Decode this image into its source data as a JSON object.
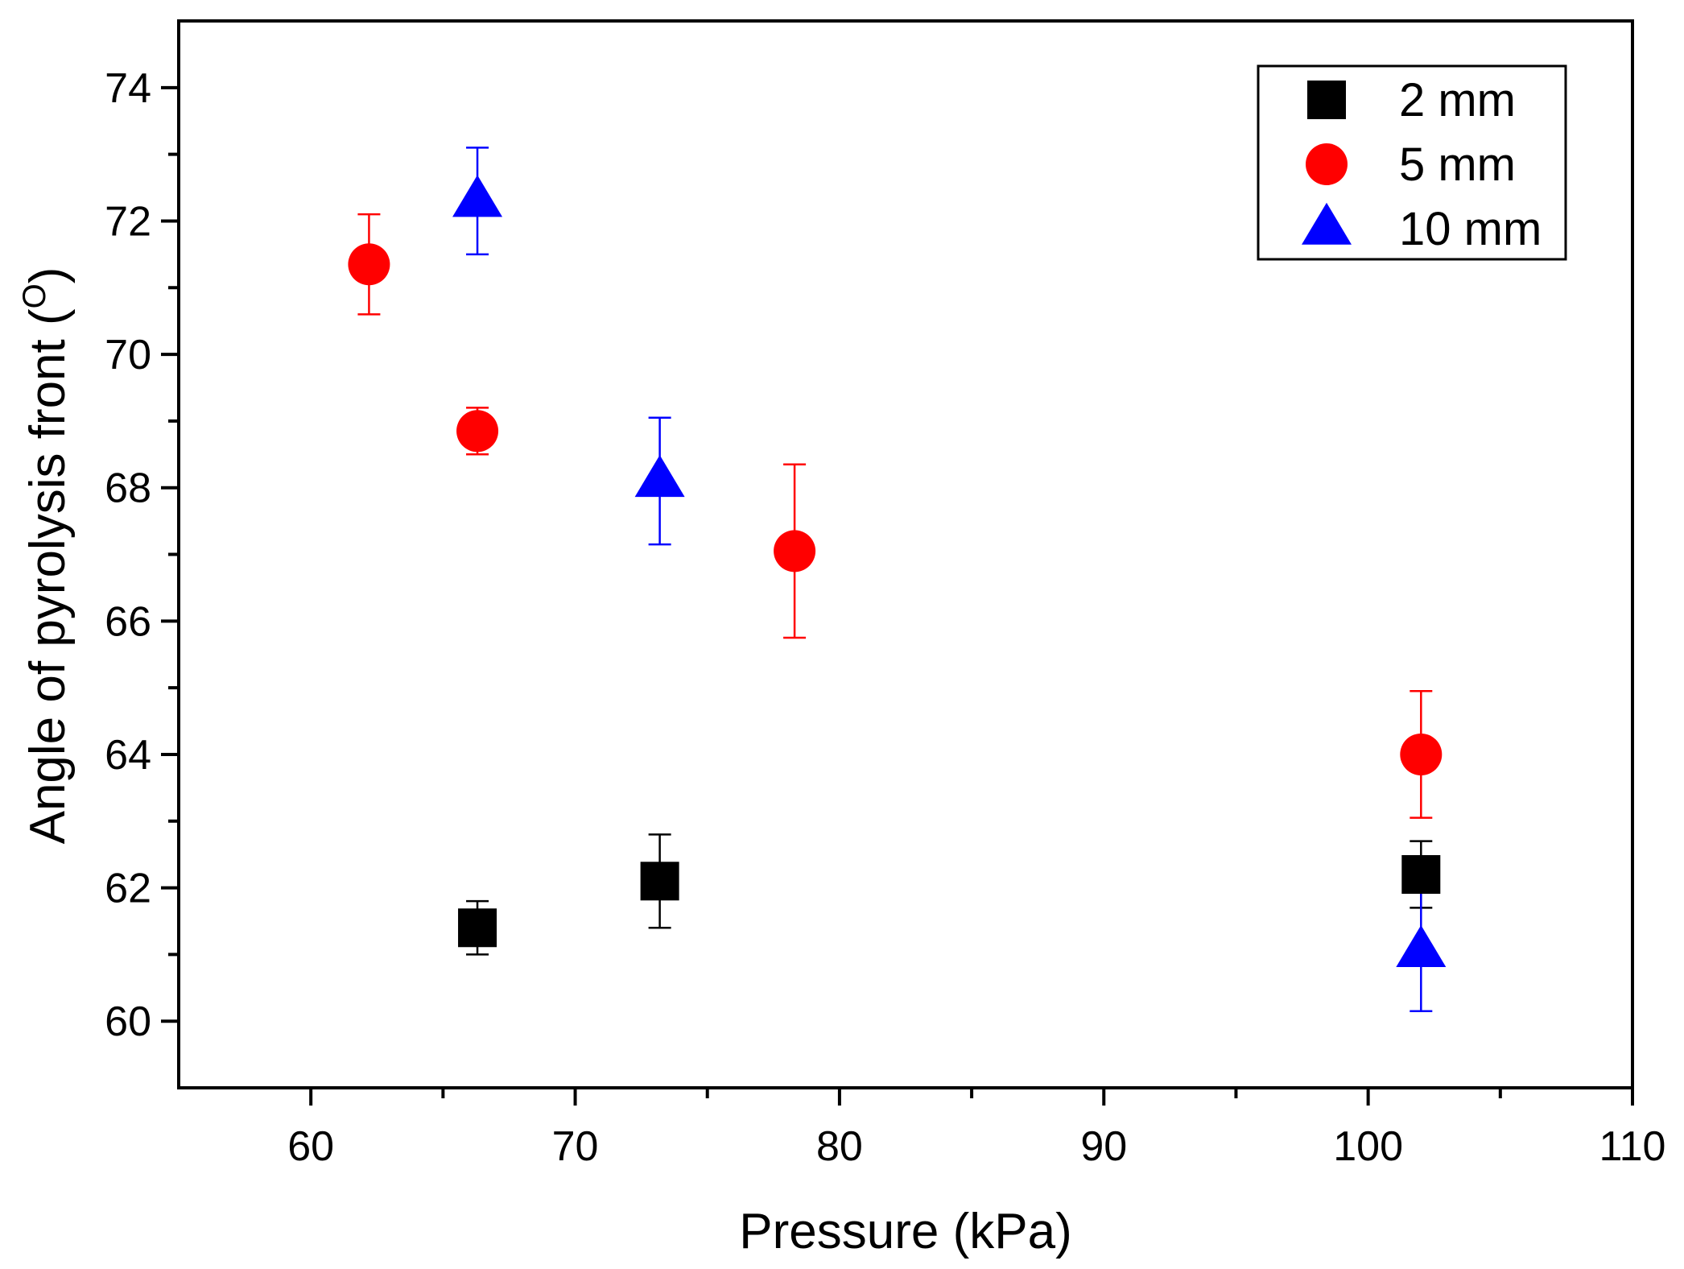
{
  "chart_data": {
    "type": "scatter",
    "title": "",
    "xlabel": "Pressure (kPa)",
    "ylabel": "Angle of pyrolysis front (",
    "ylabel_superscript": "O",
    "ylabel_suffix": ")",
    "xlim": [
      55,
      110
    ],
    "ylim": [
      59,
      75
    ],
    "x_ticks": [
      60,
      70,
      80,
      90,
      100,
      110
    ],
    "x_tick_labels": [
      "60",
      "70",
      "80",
      "90",
      "100",
      "110"
    ],
    "x_minor_ticks": [
      65,
      75,
      85,
      95,
      105
    ],
    "y_ticks": [
      60,
      62,
      64,
      66,
      68,
      70,
      72,
      74
    ],
    "y_tick_labels": [
      "60",
      "62",
      "64",
      "66",
      "68",
      "70",
      "72",
      "74"
    ],
    "y_minor_ticks": [
      61,
      63,
      65,
      67,
      69,
      71,
      73
    ],
    "grid": false,
    "legend_position": "top-right",
    "series": [
      {
        "name": "2 mm",
        "marker": "square",
        "color": "#000000",
        "points": [
          {
            "x": 66.3,
            "y": 61.4,
            "err_low": 61.0,
            "err_high": 61.8
          },
          {
            "x": 73.2,
            "y": 62.1,
            "err_low": 61.4,
            "err_high": 62.8
          },
          {
            "x": 102.0,
            "y": 62.2,
            "err_low": 61.7,
            "err_high": 62.7
          }
        ]
      },
      {
        "name": "5 mm",
        "marker": "circle",
        "color": "#ff0000",
        "points": [
          {
            "x": 62.2,
            "y": 71.35,
            "err_low": 70.6,
            "err_high": 72.1
          },
          {
            "x": 66.3,
            "y": 68.85,
            "err_low": 68.5,
            "err_high": 69.2
          },
          {
            "x": 78.3,
            "y": 67.05,
            "err_low": 65.75,
            "err_high": 68.35
          },
          {
            "x": 102.0,
            "y": 64.0,
            "err_low": 63.05,
            "err_high": 64.95
          }
        ]
      },
      {
        "name": "10 mm",
        "marker": "triangle",
        "color": "#0000ff",
        "points": [
          {
            "x": 66.3,
            "y": 72.3,
            "err_low": 71.5,
            "err_high": 73.1
          },
          {
            "x": 73.2,
            "y": 68.1,
            "err_low": 67.15,
            "err_high": 69.05
          },
          {
            "x": 102.0,
            "y": 61.05,
            "err_low": 60.15,
            "err_high": 61.95
          }
        ]
      }
    ]
  }
}
